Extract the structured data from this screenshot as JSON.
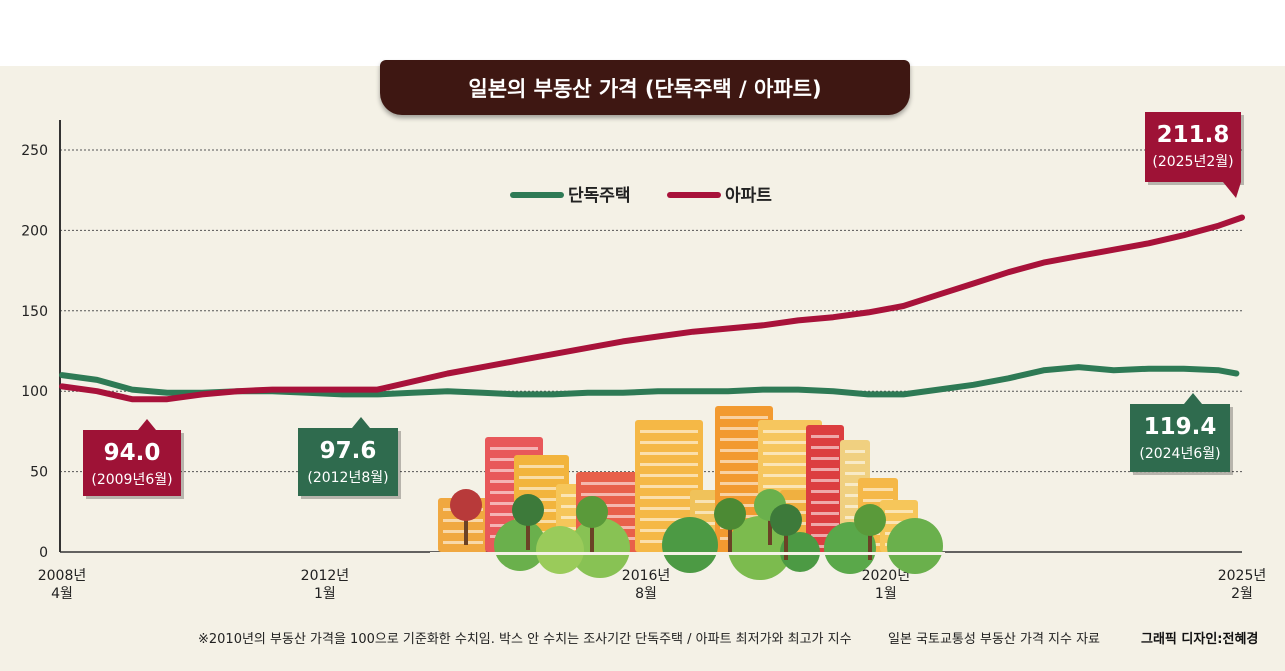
{
  "colors": {
    "detached": "#2e7a55",
    "apartment": "#a8123a",
    "box_detached": "#2f6b4e",
    "box_apartment": "#9e1236",
    "panel": "#f4f1e6",
    "title_bg": "#3e1712"
  },
  "chart_data": {
    "type": "line",
    "title": "일본의 부동산 가격 (단독주택 / 아파트)",
    "xlabel": "",
    "ylabel": "",
    "ylim": [
      0,
      270
    ],
    "yticks": [
      "0",
      "50",
      "100",
      "150",
      "200",
      "250"
    ],
    "grid": true,
    "legend_position": "top-center",
    "x_tick_labels": [
      {
        "line1": "2008년",
        "line2": "4월",
        "t": 0
      },
      {
        "line1": "2012년",
        "line2": "1월",
        "t": 3.75
      },
      {
        "line1": "2016년",
        "line2": "8월",
        "t": 8.33
      },
      {
        "line1": "2020년",
        "line2": "1월",
        "t": 11.75
      },
      {
        "line1": "2025년",
        "line2": "2월",
        "t": 16.83
      }
    ],
    "series": [
      {
        "name": "단독주택",
        "color_key": "detached",
        "x": [
          0,
          0.5,
          1,
          1.5,
          2,
          2.5,
          3,
          3.5,
          4,
          4.5,
          5,
          5.5,
          6,
          6.5,
          7,
          7.5,
          8,
          8.5,
          9,
          9.5,
          10,
          10.5,
          11,
          11.5,
          12,
          12.5,
          13,
          13.5,
          14,
          14.5,
          15,
          15.5,
          16,
          16.5,
          16.75
        ],
        "values": [
          110,
          107,
          101,
          99,
          99,
          100,
          100,
          99,
          98,
          98,
          99,
          100,
          99,
          98,
          98,
          99,
          99,
          100,
          100,
          100,
          101,
          101,
          100,
          98,
          98,
          101,
          104,
          108,
          113,
          115,
          113,
          114,
          114,
          113,
          111
        ]
      },
      {
        "name": "아파트",
        "color_key": "apartment",
        "x": [
          0,
          0.5,
          1,
          1.5,
          2,
          2.5,
          3,
          3.5,
          4,
          4.5,
          5,
          5.5,
          6,
          6.5,
          7,
          7.5,
          8,
          8.5,
          9,
          9.5,
          10,
          10.5,
          11,
          11.5,
          12,
          12.5,
          13,
          13.5,
          14,
          14.5,
          15,
          15.5,
          16,
          16.5,
          16.83
        ],
        "values": [
          103,
          100,
          95,
          95,
          98,
          100,
          101,
          101,
          101,
          101,
          106,
          111,
          115,
          119,
          123,
          127,
          131,
          134,
          137,
          139,
          141,
          144,
          146,
          149,
          153,
          160,
          167,
          174,
          180,
          184,
          188,
          192,
          197,
          203,
          208
        ]
      }
    ],
    "annotations": [
      {
        "value": "94.0",
        "date": "(2009년6월)",
        "series": "아파트",
        "t": 1.2,
        "y": 94.0
      },
      {
        "value": "97.6",
        "date": "(2012년8월)",
        "series": "단독주택",
        "t": 4.35,
        "y": 97.6
      },
      {
        "value": "211.8",
        "date": "(2025년2월)",
        "series": "아파트",
        "t": 16.83,
        "y": 211.8
      },
      {
        "value": "119.4",
        "date": "(2024년6월)",
        "series": "단독주택",
        "t": 15.9,
        "y": 119.4
      }
    ]
  },
  "footnote": "※2010년의 부동산 가격을 100으로 기준화한 수치임. 박스 안 수치는 조사기간 단독주택 / 아파트 최저가와 최고가 지수",
  "source": "일본 국토교통성 부동산 가격 지수 자료",
  "credit": "그래픽 디자인:전혜경"
}
